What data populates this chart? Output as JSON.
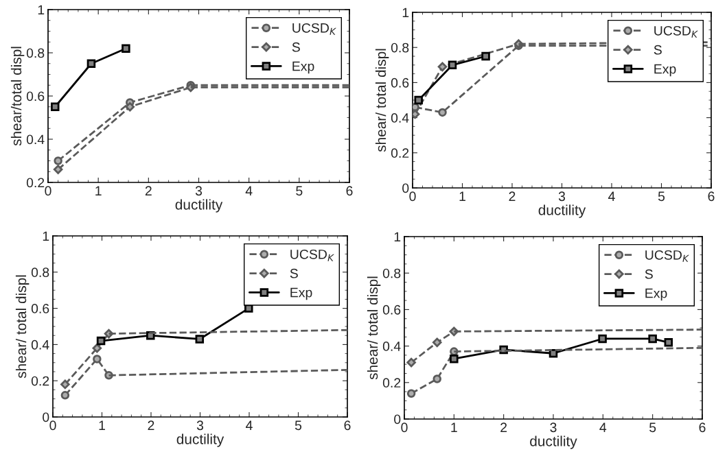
{
  "chart_data": [
    {
      "type": "line",
      "xlabel": "ductility",
      "ylabel": "shear/total displ",
      "xlim": [
        0,
        6
      ],
      "ylim": [
        0.2,
        1
      ],
      "xticks": [
        0,
        1,
        2,
        3,
        4,
        5,
        6
      ],
      "yticks": [
        0.2,
        0.4,
        0.6,
        0.8,
        1
      ],
      "legend": "top right",
      "grid": false,
      "series": [
        {
          "name": "UCSD$_{K}$",
          "color": "#5a5a5a",
          "marker": "circle",
          "line_style": "dashed",
          "x": [
            0.2,
            1.63,
            2.84
          ],
          "values": [
            0.3,
            0.57,
            0.65
          ]
        },
        {
          "name": "S",
          "color": "#5a5a5a",
          "marker": "diamond",
          "line_style": "dashed",
          "x": [
            0.2,
            1.63,
            2.84
          ],
          "values": [
            0.26,
            0.55,
            0.64
          ]
        },
        {
          "name": "Exp",
          "color": "#000000",
          "marker": "square",
          "line_style": "solid",
          "x": [
            0.14,
            0.86,
            1.55
          ],
          "values": [
            0.55,
            0.75,
            0.82
          ]
        },
        {
          "color": "#5a5a5a",
          "marker": "none",
          "line_style": "dashed",
          "x": [
            2.84,
            6
          ],
          "values": [
            0.65,
            0.65
          ]
        },
        {
          "color": "#5a5a5a",
          "marker": "none",
          "line_style": "dashed",
          "x": [
            2.84,
            6
          ],
          "values": [
            0.64,
            0.64
          ]
        }
      ]
    },
    {
      "type": "line",
      "xlabel": "ductility",
      "ylabel": "shear/ total displ",
      "xlim": [
        0,
        6
      ],
      "ylim": [
        0,
        1
      ],
      "xticks": [
        0,
        1,
        2,
        3,
        4,
        5,
        6
      ],
      "yticks": [
        0,
        0.2,
        0.4,
        0.6,
        0.8,
        1
      ],
      "legend": "top right",
      "grid": false,
      "series": [
        {
          "name": "UCSD$_{K}$",
          "color": "#5a5a5a",
          "marker": "circle",
          "line_style": "dashed",
          "x": [
            0.05,
            0.6,
            2.13
          ],
          "values": [
            0.46,
            0.43,
            0.81
          ]
        },
        {
          "name": "S",
          "color": "#5a5a5a",
          "marker": "diamond",
          "line_style": "dashed",
          "x": [
            0.05,
            0.6,
            2.13
          ],
          "values": [
            0.42,
            0.69,
            0.82
          ]
        },
        {
          "name": "Exp",
          "color": "#000000",
          "marker": "square",
          "line_style": "solid",
          "x": [
            0.12,
            0.8,
            1.47
          ],
          "values": [
            0.5,
            0.7,
            0.75
          ]
        },
        {
          "color": "#5a5a5a",
          "marker": "none",
          "line_style": "dashed",
          "x": [
            2.13,
            6
          ],
          "values": [
            0.81,
            0.81
          ]
        },
        {
          "color": "#5a5a5a",
          "marker": "none",
          "line_style": "dashed",
          "x": [
            2.13,
            6
          ],
          "values": [
            0.82,
            0.83
          ]
        }
      ]
    },
    {
      "type": "line",
      "xlabel": "ductility",
      "ylabel": "shear/ total displ",
      "xlim": [
        0,
        6
      ],
      "ylim": [
        0,
        1
      ],
      "xticks": [
        0,
        1,
        2,
        3,
        4,
        5,
        6
      ],
      "yticks": [
        0,
        0.2,
        0.4,
        0.6,
        0.8,
        1
      ],
      "legend": "top right",
      "grid": false,
      "series": [
        {
          "name": "UCSD$_{K}$",
          "color": "#5a5a5a",
          "marker": "circle",
          "line_style": "dashed",
          "x": [
            0.25,
            0.9,
            1.14
          ],
          "values": [
            0.12,
            0.32,
            0.23
          ]
        },
        {
          "name": "S",
          "color": "#5a5a5a",
          "marker": "diamond",
          "line_style": "dashed",
          "x": [
            0.25,
            0.9,
            1.14
          ],
          "values": [
            0.18,
            0.38,
            0.46
          ]
        },
        {
          "name": "Exp",
          "color": "#000000",
          "marker": "square",
          "line_style": "solid",
          "x": [
            0.98,
            1.99,
            2.99,
            3.99
          ],
          "values": [
            0.42,
            0.45,
            0.43,
            0.6
          ]
        },
        {
          "color": "#5a5a5a",
          "marker": "none",
          "line_style": "dashed",
          "x": [
            1.14,
            6
          ],
          "values": [
            0.23,
            0.26
          ]
        },
        {
          "color": "#5a5a5a",
          "marker": "none",
          "line_style": "dashed",
          "x": [
            1.14,
            6
          ],
          "values": [
            0.46,
            0.48
          ]
        }
      ]
    },
    {
      "type": "line",
      "xlabel": "ductility",
      "ylabel": "shear/ total displ",
      "xlim": [
        0,
        6
      ],
      "ylim": [
        0,
        1
      ],
      "xticks": [
        0,
        1,
        2,
        3,
        4,
        5,
        6
      ],
      "yticks": [
        0,
        0.2,
        0.4,
        0.6,
        0.8,
        1
      ],
      "legend": "top right",
      "grid": false,
      "series": [
        {
          "name": "UCSD$_{K}$",
          "color": "#5a5a5a",
          "marker": "circle",
          "line_style": "dashed",
          "x": [
            0.14,
            0.66,
            1.0
          ],
          "values": [
            0.14,
            0.22,
            0.37
          ]
        },
        {
          "name": "S",
          "color": "#5a5a5a",
          "marker": "diamond",
          "line_style": "dashed",
          "x": [
            0.14,
            0.66,
            1.0
          ],
          "values": [
            0.31,
            0.42,
            0.48
          ]
        },
        {
          "name": "Exp",
          "color": "#000000",
          "marker": "square",
          "line_style": "solid",
          "x": [
            1.0,
            2.0,
            3.0,
            3.99,
            5.0,
            5.32
          ],
          "values": [
            0.33,
            0.38,
            0.36,
            0.44,
            0.44,
            0.42
          ]
        },
        {
          "color": "#5a5a5a",
          "marker": "none",
          "line_style": "dashed",
          "x": [
            1.0,
            6
          ],
          "values": [
            0.37,
            0.39
          ]
        },
        {
          "color": "#5a5a5a",
          "marker": "none",
          "line_style": "dashed",
          "x": [
            1.0,
            6
          ],
          "values": [
            0.48,
            0.49
          ]
        }
      ]
    }
  ]
}
